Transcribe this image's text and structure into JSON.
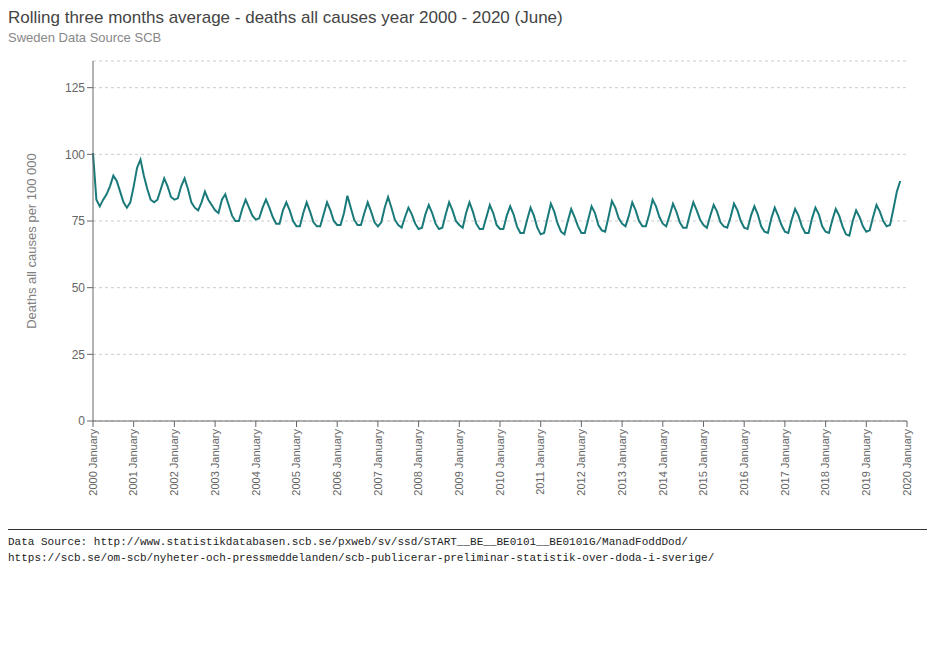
{
  "chart_data": {
    "type": "line",
    "title": "Rolling three months average - deaths all causes year 2000 - 2020 (June)",
    "subtitle": "Sweden Data Source SCB",
    "ylabel": "Deaths all causes per 100 000",
    "annotations": [
      "Data Source: http://www.statistikdatabasen.scb.se/pxweb/sv/ssd/START__BE__BE0101__BE0101G/ManadFoddDod/",
      "https://scb.se/om-scb/nyheter-och-pressmeddelanden/scb-publicerar-preliminar-statistik-over-doda-i-sverige/"
    ],
    "color": "#1a7a7a",
    "grid": true,
    "ylim": [
      0,
      135
    ],
    "yticks": [
      0,
      25,
      50,
      75,
      100,
      125
    ],
    "categories": [
      "2000 January",
      null,
      null,
      null,
      null,
      null,
      null,
      null,
      null,
      null,
      null,
      null,
      "2001 January",
      null,
      null,
      null,
      null,
      null,
      null,
      null,
      null,
      null,
      null,
      null,
      "2002 January",
      null,
      null,
      null,
      null,
      null,
      null,
      null,
      null,
      null,
      null,
      null,
      "2003 January",
      null,
      null,
      null,
      null,
      null,
      null,
      null,
      null,
      null,
      null,
      null,
      "2004 January",
      null,
      null,
      null,
      null,
      null,
      null,
      null,
      null,
      null,
      null,
      null,
      "2005 January",
      null,
      null,
      null,
      null,
      null,
      null,
      null,
      null,
      null,
      null,
      null,
      "2006 January",
      null,
      null,
      null,
      null,
      null,
      null,
      null,
      null,
      null,
      null,
      null,
      "2007 January",
      null,
      null,
      null,
      null,
      null,
      null,
      null,
      null,
      null,
      null,
      null,
      "2008 January",
      null,
      null,
      null,
      null,
      null,
      null,
      null,
      null,
      null,
      null,
      null,
      "2009 January",
      null,
      null,
      null,
      null,
      null,
      null,
      null,
      null,
      null,
      null,
      null,
      "2010 January",
      null,
      null,
      null,
      null,
      null,
      null,
      null,
      null,
      null,
      null,
      null,
      "2011 January",
      null,
      null,
      null,
      null,
      null,
      null,
      null,
      null,
      null,
      null,
      null,
      "2012 January",
      null,
      null,
      null,
      null,
      null,
      null,
      null,
      null,
      null,
      null,
      null,
      "2013 January",
      null,
      null,
      null,
      null,
      null,
      null,
      null,
      null,
      null,
      null,
      null,
      "2014 January",
      null,
      null,
      null,
      null,
      null,
      null,
      null,
      null,
      null,
      null,
      null,
      "2015 January",
      null,
      null,
      null,
      null,
      null,
      null,
      null,
      null,
      null,
      null,
      null,
      "2016 January",
      null,
      null,
      null,
      null,
      null,
      null,
      null,
      null,
      null,
      null,
      null,
      "2017 January",
      null,
      null,
      null,
      null,
      null,
      null,
      null,
      null,
      null,
      null,
      null,
      "2018 January",
      null,
      null,
      null,
      null,
      null,
      null,
      null,
      null,
      null,
      null,
      null,
      "2019 January",
      null,
      null,
      null,
      null,
      null,
      null,
      null,
      null,
      null,
      null,
      null,
      "2020 January"
    ],
    "values": [
      100.5,
      83.0,
      80.5,
      83.0,
      85.0,
      88.0,
      92.0,
      90.0,
      86.0,
      82.0,
      80.0,
      82.0,
      88.0,
      95.0,
      98.0,
      92.0,
      87.0,
      83.0,
      82.0,
      83.0,
      87.0,
      91.0,
      88.0,
      84.0,
      83.0,
      83.5,
      88.0,
      91.0,
      87.0,
      82.0,
      80.0,
      79.0,
      82.0,
      86.0,
      83.0,
      81.0,
      79.0,
      78.0,
      83.0,
      85.0,
      81.0,
      77.0,
      75.0,
      75.0,
      79.5,
      83.0,
      80.0,
      77.0,
      75.5,
      76.0,
      80.0,
      83.0,
      80.0,
      76.5,
      74.0,
      74.0,
      79.0,
      82.0,
      79.0,
      75.0,
      73.0,
      73.0,
      78.0,
      82.0,
      78.5,
      74.5,
      73.0,
      73.0,
      77.5,
      82.0,
      79.0,
      75.0,
      73.5,
      73.5,
      78.0,
      84.5,
      80.0,
      75.5,
      73.5,
      73.5,
      78.0,
      82.0,
      78.5,
      74.5,
      73.0,
      74.5,
      80.0,
      84.0,
      80.0,
      75.5,
      73.5,
      72.5,
      76.5,
      80.0,
      77.5,
      74.0,
      72.0,
      72.5,
      77.5,
      81.0,
      78.0,
      74.0,
      72.0,
      72.5,
      77.5,
      82.0,
      79.0,
      75.0,
      73.5,
      72.5,
      78.0,
      82.0,
      78.5,
      74.0,
      72.0,
      72.0,
      76.5,
      81.0,
      78.0,
      73.5,
      72.0,
      72.0,
      77.0,
      80.5,
      77.5,
      73.0,
      70.5,
      70.5,
      75.5,
      80.0,
      77.0,
      72.5,
      70.0,
      70.5,
      76.0,
      81.5,
      78.5,
      74.0,
      71.0,
      70.0,
      75.0,
      79.5,
      76.5,
      73.0,
      70.5,
      70.5,
      75.5,
      80.5,
      78.0,
      73.5,
      71.5,
      71.0,
      76.5,
      82.5,
      80.0,
      76.0,
      74.0,
      73.0,
      77.0,
      82.0,
      79.0,
      75.0,
      73.0,
      73.0,
      77.5,
      83.0,
      80.5,
      76.5,
      74.0,
      73.0,
      77.0,
      81.5,
      78.5,
      74.5,
      72.5,
      72.5,
      77.5,
      82.0,
      79.0,
      75.5,
      73.5,
      72.5,
      77.0,
      81.0,
      78.5,
      74.5,
      73.0,
      72.5,
      76.5,
      81.5,
      79.0,
      75.0,
      72.5,
      72.0,
      77.0,
      80.5,
      77.5,
      73.0,
      71.0,
      70.5,
      76.0,
      80.0,
      77.0,
      73.5,
      71.0,
      70.5,
      75.5,
      79.5,
      77.0,
      73.0,
      70.5,
      70.5,
      76.0,
      80.0,
      77.5,
      73.0,
      71.0,
      70.5,
      75.5,
      79.5,
      77.0,
      73.0,
      70.0,
      69.5,
      75.0,
      79.0,
      76.5,
      73.0,
      71.0,
      71.5,
      76.5,
      81.0,
      78.5,
      75.0,
      73.0,
      73.5,
      79.5,
      86.0,
      90.0,
      null,
      null
    ]
  }
}
